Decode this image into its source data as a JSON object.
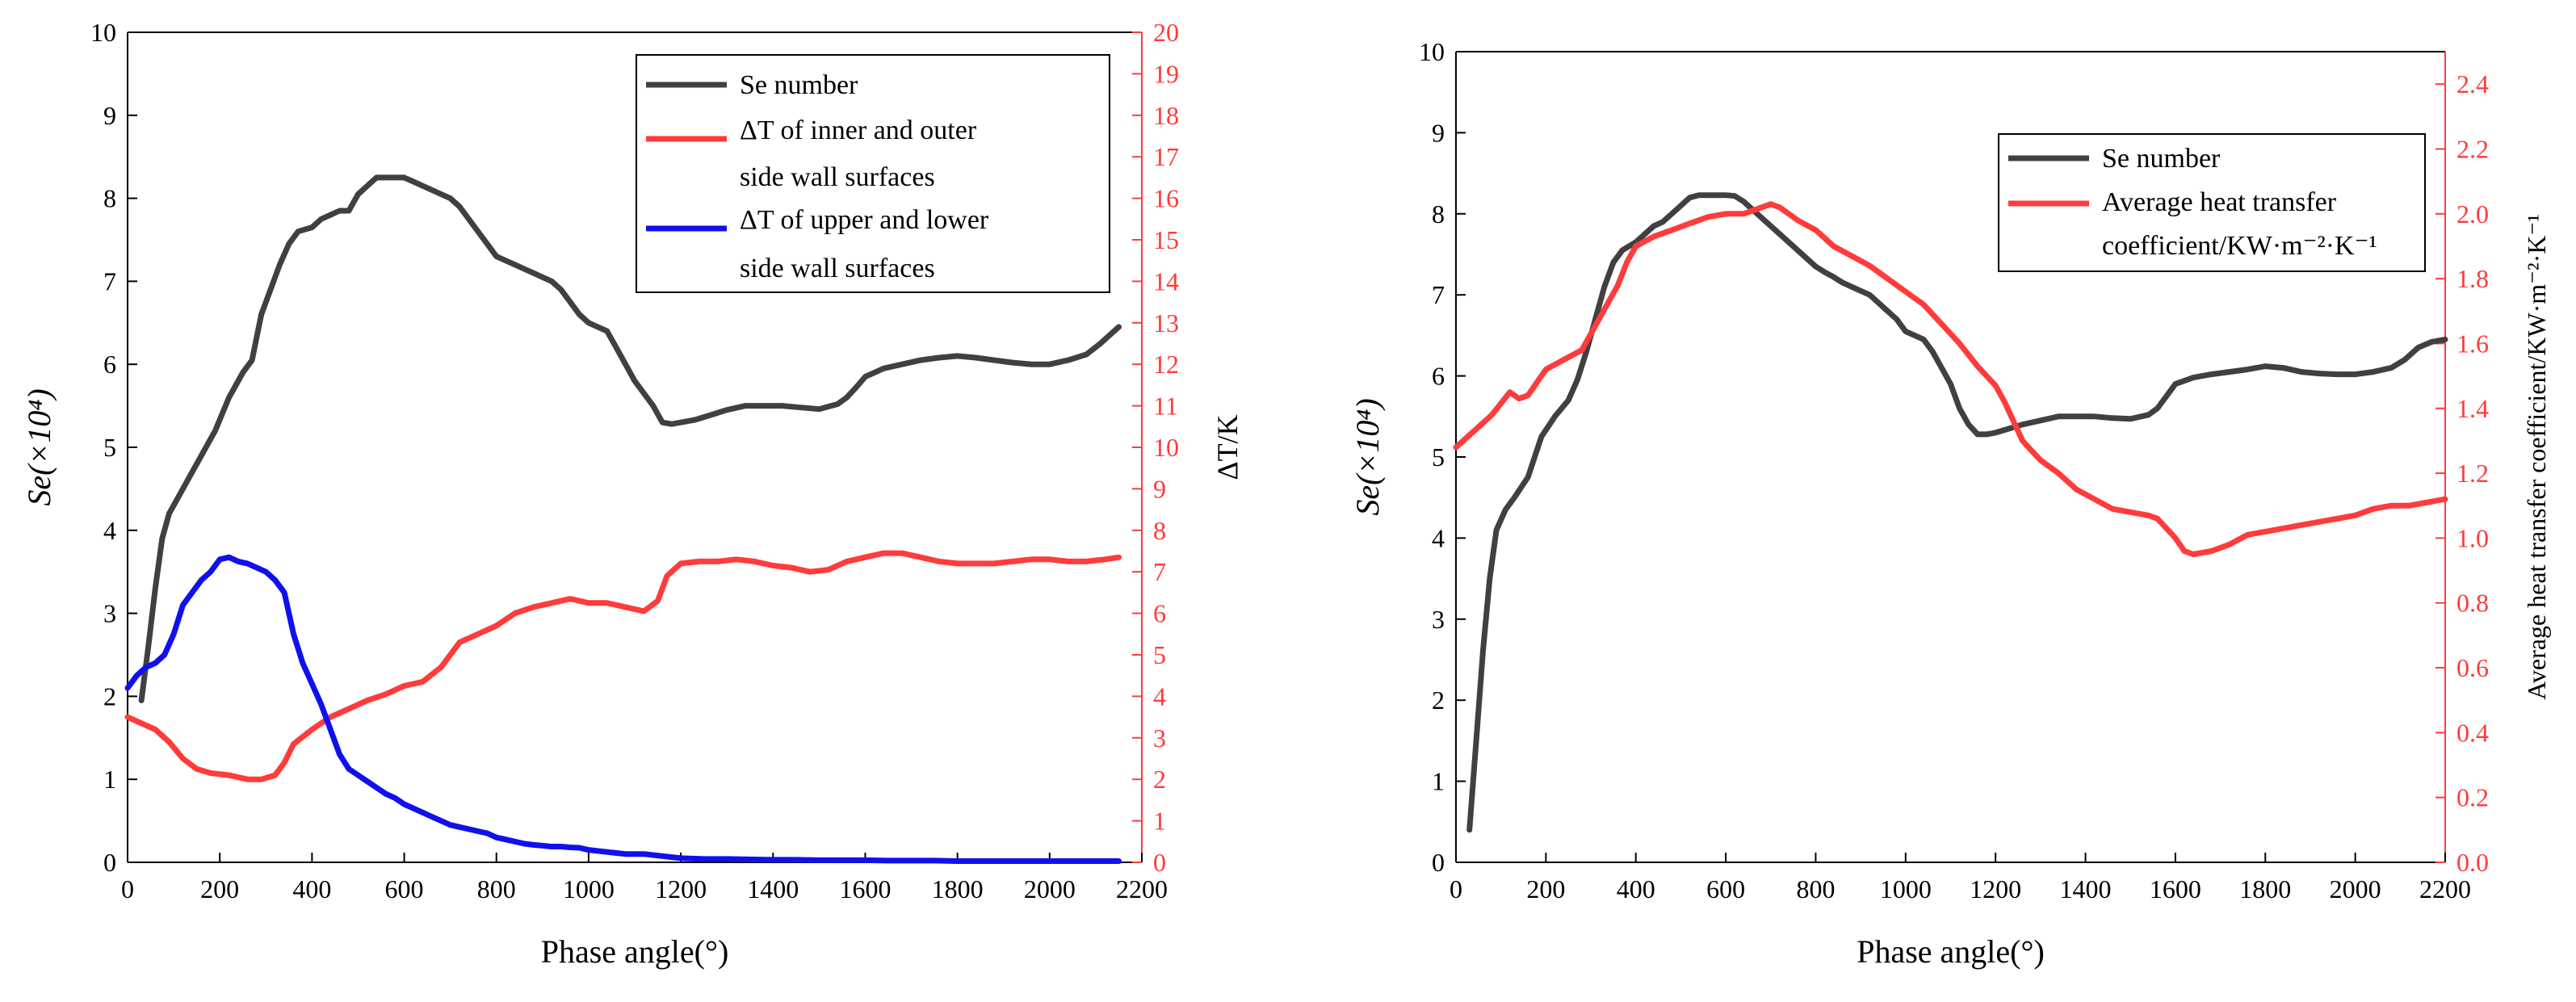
{
  "chart_data": [
    {
      "type": "line",
      "xlabel": "Phase angle(°)",
      "ylabel_left": "Se(×10⁴)",
      "ylabel_right": "ΔT/K",
      "xlim": [
        0,
        2200
      ],
      "ylim_left": [
        0,
        10
      ],
      "ylim_right": [
        0,
        20
      ],
      "x_ticks": [
        0,
        200,
        400,
        600,
        800,
        1000,
        1200,
        1400,
        1600,
        1800,
        2000,
        2200
      ],
      "y_ticks_left": [
        0,
        1,
        2,
        3,
        4,
        5,
        6,
        7,
        8,
        9,
        10
      ],
      "y_ticks_right": [
        0,
        1,
        2,
        3,
        4,
        5,
        6,
        7,
        8,
        9,
        10,
        11,
        12,
        13,
        14,
        15,
        16,
        17,
        18,
        19,
        20
      ],
      "colors": {
        "right_axis": "#ff3b3b"
      },
      "legend": {
        "placement": "top-right",
        "entries": [
          {
            "lines": [
              "Se number"
            ]
          },
          {
            "lines": [
              "ΔT of inner and outer",
              "side wall surfaces"
            ]
          },
          {
            "lines": [
              "ΔT of upper and lower",
              "side wall surfaces"
            ]
          }
        ]
      },
      "series": [
        {
          "name": "Se number",
          "axis": "left",
          "color": "#404040",
          "x": [
            30,
            45,
            60,
            75,
            90,
            110,
            130,
            160,
            190,
            220,
            250,
            270,
            290,
            310,
            330,
            350,
            370,
            400,
            420,
            440,
            460,
            480,
            500,
            520,
            540,
            560,
            580,
            600,
            620,
            640,
            660,
            680,
            700,
            720,
            740,
            760,
            780,
            800,
            820,
            840,
            860,
            880,
            900,
            920,
            940,
            960,
            980,
            1000,
            1020,
            1040,
            1060,
            1080,
            1100,
            1120,
            1140,
            1160,
            1180,
            1200,
            1230,
            1260,
            1300,
            1340,
            1380,
            1420,
            1460,
            1500,
            1540,
            1560,
            1580,
            1600,
            1640,
            1680,
            1720,
            1760,
            1800,
            1840,
            1880,
            1920,
            1960,
            2000,
            2040,
            2080,
            2110,
            2130,
            2150
          ],
          "values": [
            1.95,
            2.6,
            3.3,
            3.9,
            4.2,
            4.4,
            4.6,
            4.9,
            5.2,
            5.6,
            5.9,
            6.05,
            6.6,
            6.9,
            7.2,
            7.45,
            7.6,
            7.65,
            7.75,
            7.8,
            7.85,
            7.85,
            8.05,
            8.15,
            8.25,
            8.25,
            8.25,
            8.25,
            8.2,
            8.15,
            8.1,
            8.05,
            8.0,
            7.9,
            7.75,
            7.6,
            7.45,
            7.3,
            7.25,
            7.2,
            7.15,
            7.1,
            7.05,
            7.0,
            6.9,
            6.75,
            6.6,
            6.5,
            6.45,
            6.4,
            6.2,
            6.0,
            5.8,
            5.65,
            5.5,
            5.3,
            5.28,
            5.3,
            5.33,
            5.38,
            5.45,
            5.5,
            5.5,
            5.5,
            5.48,
            5.46,
            5.52,
            5.6,
            5.72,
            5.85,
            5.95,
            6.0,
            6.05,
            6.08,
            6.1,
            6.08,
            6.05,
            6.02,
            6.0,
            6.0,
            6.05,
            6.12,
            6.25,
            6.35,
            6.45
          ]
        },
        {
          "name": "ΔT of inner and outer side wall surfaces",
          "axis": "right",
          "color": "#ff3b3b",
          "x": [
            0,
            30,
            60,
            90,
            120,
            150,
            180,
            220,
            260,
            290,
            320,
            340,
            360,
            400,
            440,
            480,
            520,
            560,
            600,
            640,
            680,
            720,
            760,
            800,
            840,
            880,
            920,
            960,
            1000,
            1040,
            1080,
            1120,
            1150,
            1170,
            1200,
            1240,
            1280,
            1320,
            1360,
            1400,
            1440,
            1480,
            1520,
            1560,
            1600,
            1640,
            1680,
            1720,
            1760,
            1800,
            1840,
            1880,
            1920,
            1960,
            2000,
            2040,
            2080,
            2120,
            2150
          ],
          "values": [
            3.5,
            3.35,
            3.2,
            2.9,
            2.5,
            2.25,
            2.15,
            2.1,
            2.0,
            2.0,
            2.1,
            2.4,
            2.85,
            3.2,
            3.5,
            3.7,
            3.9,
            4.05,
            4.25,
            4.35,
            4.7,
            5.3,
            5.5,
            5.7,
            6.0,
            6.15,
            6.25,
            6.35,
            6.25,
            6.25,
            6.15,
            6.05,
            6.3,
            6.9,
            7.2,
            7.25,
            7.25,
            7.3,
            7.25,
            7.15,
            7.1,
            7.0,
            7.05,
            7.25,
            7.35,
            7.45,
            7.45,
            7.35,
            7.25,
            7.2,
            7.2,
            7.2,
            7.25,
            7.3,
            7.3,
            7.25,
            7.25,
            7.3,
            7.35
          ]
        },
        {
          "name": "ΔT of upper and lower side wall surfaces",
          "axis": "right",
          "color": "#1010ee",
          "x": [
            0,
            20,
            40,
            60,
            80,
            100,
            120,
            140,
            160,
            180,
            200,
            220,
            240,
            260,
            280,
            300,
            320,
            340,
            360,
            380,
            400,
            420,
            440,
            460,
            480,
            500,
            520,
            540,
            560,
            580,
            600,
            620,
            640,
            660,
            680,
            700,
            720,
            740,
            760,
            780,
            800,
            820,
            840,
            860,
            880,
            900,
            920,
            940,
            960,
            980,
            1000,
            1040,
            1080,
            1120,
            1160,
            1200,
            1250,
            1300,
            1350,
            1400,
            1450,
            1500,
            1550,
            1600,
            1650,
            1700,
            1750,
            1800,
            1850,
            1900,
            1950,
            2000,
            2050,
            2100,
            2150
          ],
          "values": [
            4.2,
            4.5,
            4.7,
            4.8,
            5.0,
            5.5,
            6.2,
            6.5,
            6.8,
            7.0,
            7.3,
            7.35,
            7.25,
            7.2,
            7.1,
            7.0,
            6.8,
            6.5,
            5.5,
            4.8,
            4.3,
            3.8,
            3.2,
            2.6,
            2.25,
            2.1,
            1.95,
            1.8,
            1.65,
            1.55,
            1.4,
            1.3,
            1.2,
            1.1,
            1.0,
            0.9,
            0.85,
            0.8,
            0.75,
            0.7,
            0.6,
            0.55,
            0.5,
            0.45,
            0.42,
            0.4,
            0.38,
            0.38,
            0.36,
            0.35,
            0.3,
            0.25,
            0.2,
            0.2,
            0.15,
            0.1,
            0.08,
            0.08,
            0.07,
            0.06,
            0.06,
            0.05,
            0.05,
            0.05,
            0.04,
            0.04,
            0.04,
            0.03,
            0.03,
            0.03,
            0.03,
            0.03,
            0.03,
            0.03,
            0.03
          ]
        }
      ]
    },
    {
      "type": "line",
      "xlabel": "Phase angle(°)",
      "ylabel_left": "Se(×10⁴)",
      "ylabel_right": "Average heat transfer coefficient/KW·m⁻²·K⁻¹",
      "xlim": [
        0,
        2200
      ],
      "ylim_left": [
        0,
        10
      ],
      "ylim_right": [
        0,
        2.5
      ],
      "x_ticks": [
        0,
        200,
        400,
        600,
        800,
        1000,
        1200,
        1400,
        1600,
        1800,
        2000,
        2200
      ],
      "y_ticks_left": [
        0,
        1,
        2,
        3,
        4,
        5,
        6,
        7,
        8,
        9,
        10
      ],
      "y_ticks_right": [
        "0.0",
        "0.2",
        "0.4",
        "0.6",
        "0.8",
        "1.0",
        "1.2",
        "1.4",
        "1.6",
        "1.8",
        "2.0",
        "2.2",
        "2.4"
      ],
      "colors": {
        "right_axis": "#ff3b3b"
      },
      "legend": {
        "placement": "top-right",
        "entries": [
          {
            "lines": [
              "Se number"
            ]
          },
          {
            "lines": [
              "Average heat transfer",
              "coefficient/KW·m⁻²·K⁻¹"
            ]
          }
        ]
      },
      "series": [
        {
          "name": "Se number",
          "axis": "left",
          "color": "#404040",
          "x": [
            30,
            45,
            60,
            75,
            90,
            110,
            130,
            160,
            190,
            220,
            250,
            270,
            290,
            310,
            330,
            350,
            370,
            400,
            420,
            440,
            460,
            480,
            500,
            520,
            540,
            560,
            580,
            600,
            620,
            640,
            660,
            680,
            700,
            720,
            740,
            760,
            780,
            800,
            820,
            840,
            860,
            880,
            900,
            920,
            940,
            960,
            980,
            1000,
            1020,
            1040,
            1060,
            1080,
            1100,
            1120,
            1140,
            1160,
            1180,
            1200,
            1230,
            1260,
            1300,
            1340,
            1380,
            1420,
            1460,
            1500,
            1540,
            1560,
            1580,
            1600,
            1640,
            1680,
            1720,
            1760,
            1800,
            1840,
            1880,
            1920,
            1960,
            2000,
            2040,
            2080,
            2110,
            2140,
            2170,
            2200
          ],
          "values": [
            0.4,
            1.5,
            2.6,
            3.5,
            4.1,
            4.35,
            4.5,
            4.75,
            5.25,
            5.5,
            5.7,
            5.95,
            6.3,
            6.7,
            7.1,
            7.4,
            7.55,
            7.65,
            7.75,
            7.85,
            7.9,
            8.0,
            8.1,
            8.2,
            8.23,
            8.23,
            8.23,
            8.23,
            8.22,
            8.15,
            8.05,
            7.95,
            7.85,
            7.75,
            7.65,
            7.55,
            7.45,
            7.35,
            7.28,
            7.22,
            7.15,
            7.1,
            7.05,
            7.0,
            6.9,
            6.8,
            6.7,
            6.55,
            6.5,
            6.45,
            6.3,
            6.1,
            5.9,
            5.6,
            5.4,
            5.28,
            5.28,
            5.3,
            5.35,
            5.4,
            5.45,
            5.5,
            5.5,
            5.5,
            5.48,
            5.47,
            5.52,
            5.6,
            5.75,
            5.9,
            5.98,
            6.02,
            6.05,
            6.08,
            6.12,
            6.1,
            6.05,
            6.03,
            6.02,
            6.02,
            6.05,
            6.1,
            6.2,
            6.35,
            6.42,
            6.45
          ]
        },
        {
          "name": "Average heat transfer coefficient/KW·m⁻²·K⁻¹",
          "axis": "right",
          "color": "#ff3b3b",
          "x": [
            0,
            40,
            80,
            120,
            140,
            160,
            200,
            240,
            280,
            320,
            360,
            380,
            400,
            440,
            480,
            520,
            560,
            600,
            640,
            680,
            700,
            720,
            760,
            800,
            840,
            880,
            920,
            960,
            1000,
            1040,
            1080,
            1120,
            1160,
            1200,
            1220,
            1240,
            1260,
            1280,
            1300,
            1340,
            1380,
            1420,
            1460,
            1500,
            1540,
            1560,
            1600,
            1620,
            1640,
            1680,
            1720,
            1760,
            1800,
            1840,
            1880,
            1920,
            1960,
            2000,
            2040,
            2080,
            2120,
            2160,
            2200
          ],
          "values": [
            1.28,
            1.33,
            1.38,
            1.45,
            1.43,
            1.44,
            1.52,
            1.55,
            1.58,
            1.68,
            1.78,
            1.85,
            1.9,
            1.93,
            1.95,
            1.97,
            1.99,
            2.0,
            2.0,
            2.02,
            2.03,
            2.02,
            1.98,
            1.95,
            1.9,
            1.87,
            1.84,
            1.8,
            1.76,
            1.72,
            1.66,
            1.6,
            1.53,
            1.47,
            1.42,
            1.36,
            1.3,
            1.27,
            1.24,
            1.2,
            1.15,
            1.12,
            1.09,
            1.08,
            1.07,
            1.06,
            1.0,
            0.96,
            0.95,
            0.96,
            0.98,
            1.01,
            1.02,
            1.03,
            1.04,
            1.05,
            1.06,
            1.07,
            1.09,
            1.1,
            1.1,
            1.11,
            1.12
          ]
        }
      ]
    }
  ]
}
